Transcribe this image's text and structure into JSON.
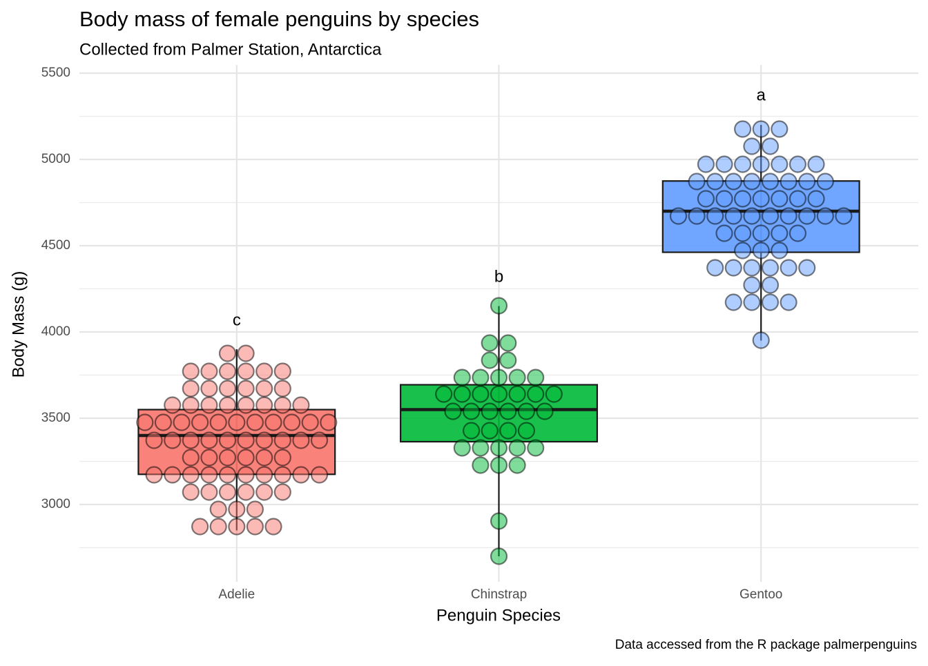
{
  "chart_data": {
    "type": "boxplot",
    "title": "Body mass of female penguins by species",
    "subtitle": "Collected from Palmer Station, Antarctica",
    "x_label": "Penguin Species",
    "y_label": "Body Mass (g)",
    "caption": "Data accessed from the R package palmerpenguins",
    "ylim": [
      2552,
      5548
    ],
    "yticks": [
      3000,
      3500,
      4000,
      4500,
      5000,
      5500
    ],
    "yticks_minor": [
      2750,
      3250,
      3750,
      4250,
      4750,
      5250
    ],
    "grid": true,
    "series": [
      {
        "name": "Adelie",
        "color": "#F8766D",
        "q1": 3175,
        "median": 3400,
        "q3": 3550,
        "whisker_low": 2850,
        "whisker_high": 3900,
        "dot_bins": [
          3876,
          3772,
          3672,
          3576,
          3476,
          3372,
          3272,
          3172,
          3072,
          2972,
          2872
        ],
        "dot_counts": [
          2,
          6,
          6,
          8,
          11,
          10,
          6,
          10,
          6,
          3,
          5
        ],
        "letter": "c",
        "letter_y": 4064
      },
      {
        "name": "Chinstrap",
        "color": "#00BA38",
        "q1": 3364,
        "median": 3550,
        "q3": 3694,
        "whisker_low": 2700,
        "whisker_high": 4150,
        "dot_bins": [
          4152,
          3936,
          3836,
          3736,
          3640,
          3540,
          3428,
          3328,
          3228,
          2904,
          2700
        ],
        "dot_counts": [
          1,
          2,
          2,
          5,
          7,
          6,
          4,
          5,
          3,
          1,
          1
        ],
        "letter": "b",
        "letter_y": 4316
      },
      {
        "name": "Gentoo",
        "color": "#619CFF",
        "q1": 4462,
        "median": 4700,
        "q3": 4875,
        "whisker_low": 3950,
        "whisker_high": 5200,
        "dot_bins": [
          5176,
          5076,
          4972,
          4872,
          4772,
          4672,
          4572,
          4472,
          4372,
          4272,
          4172,
          3952
        ],
        "dot_counts": [
          3,
          2,
          7,
          8,
          7,
          10,
          5,
          3,
          6,
          2,
          4,
          1
        ],
        "letter": "a",
        "letter_y": 5368
      }
    ]
  }
}
